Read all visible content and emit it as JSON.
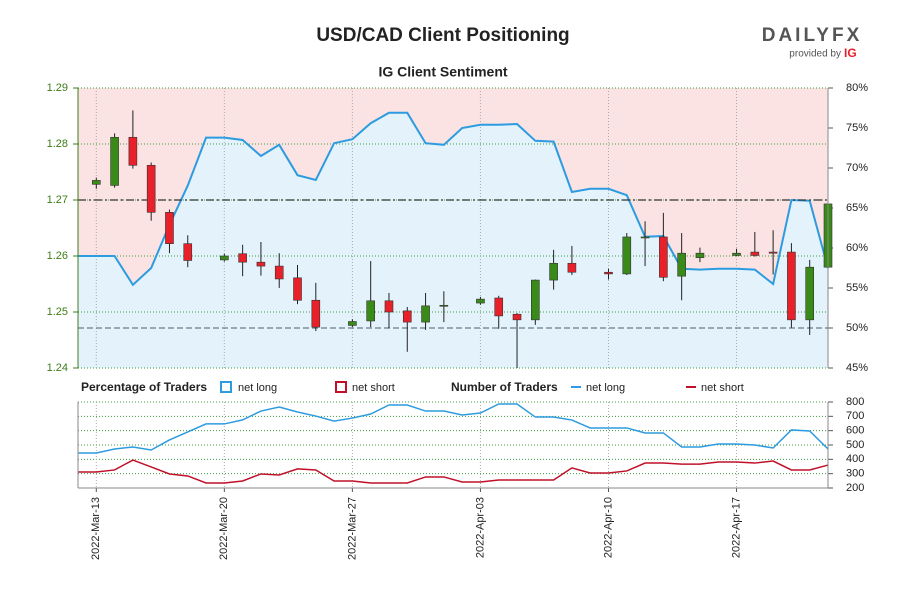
{
  "logo": {
    "brand": "DAILYFX",
    "provider": "provided by",
    "partner": "IG"
  },
  "chart_data": [
    {
      "type": "candlestick",
      "title": "USD/CAD Client Positioning",
      "subtitle": "IG Client Sentiment",
      "legend_title": "Percentage of Traders",
      "up_color": "#3a8a1a",
      "down_color": "#e8202a",
      "grid": true,
      "x": [
        "2022-03-13",
        "2022-03-14",
        "2022-03-15",
        "2022-03-16",
        "2022-03-17",
        "2022-03-18",
        "2022-03-20",
        "2022-03-21",
        "2022-03-22",
        "2022-03-23",
        "2022-03-24",
        "2022-03-25",
        "2022-03-27",
        "2022-03-28",
        "2022-03-29",
        "2022-03-30",
        "2022-03-31",
        "2022-04-01",
        "2022-04-03",
        "2022-04-04",
        "2022-04-05",
        "2022-04-06",
        "2022-04-07",
        "2022-04-08",
        "2022-04-10",
        "2022-04-11",
        "2022-04-12",
        "2022-04-13",
        "2022-04-14",
        "2022-04-15",
        "2022-04-17",
        "2022-04-18",
        "2022-04-19",
        "2022-04-20",
        "2022-04-21",
        "2022-04-22"
      ],
      "open": [
        1.2728,
        1.2726,
        1.2812,
        1.2762,
        1.2678,
        1.2622,
        1.2593,
        1.2604,
        1.2589,
        1.2582,
        1.2561,
        1.2521,
        1.2476,
        1.2484,
        1.252,
        1.2502,
        1.2482,
        1.2512,
        1.2516,
        1.2525,
        1.2496,
        1.2486,
        1.2557,
        1.2587,
        1.2571,
        1.2568,
        1.2634,
        1.2634,
        1.2564,
        1.2597,
        1.2601,
        1.2607,
        1.2607,
        1.2607,
        1.2486,
        1.258
      ],
      "high": [
        1.274,
        1.2819,
        1.286,
        1.2767,
        1.2683,
        1.2637,
        1.2604,
        1.262,
        1.2625,
        1.2605,
        1.2584,
        1.2552,
        1.2487,
        1.2591,
        1.2534,
        1.2509,
        1.2534,
        1.2537,
        1.2527,
        1.2529,
        1.2498,
        1.2558,
        1.2611,
        1.2618,
        1.2577,
        1.2641,
        1.2662,
        1.2677,
        1.2641,
        1.2615,
        1.2613,
        1.2643,
        1.2646,
        1.2623,
        1.2593,
        1.2698
      ],
      "low": [
        1.272,
        1.2722,
        1.2756,
        1.2663,
        1.2605,
        1.258,
        1.259,
        1.2564,
        1.2565,
        1.2543,
        1.2514,
        1.2466,
        1.2473,
        1.2473,
        1.2471,
        1.2429,
        1.2468,
        1.2482,
        1.2513,
        1.247,
        1.24,
        1.2477,
        1.254,
        1.2566,
        1.2558,
        1.2566,
        1.2582,
        1.2555,
        1.2521,
        1.2589,
        1.26,
        1.2599,
        1.2567,
        1.2472,
        1.2459,
        1.2566
      ],
      "close": [
        1.2735,
        1.2812,
        1.2762,
        1.2678,
        1.2622,
        1.2592,
        1.26,
        1.2589,
        1.2582,
        1.2559,
        1.2521,
        1.2473,
        1.2483,
        1.252,
        1.25,
        1.2482,
        1.2511,
        1.2512,
        1.2523,
        1.2493,
        1.2486,
        1.2557,
        1.2587,
        1.2571,
        1.2568,
        1.2634,
        1.2634,
        1.2562,
        1.2605,
        1.2605,
        1.2605,
        1.2601,
        1.2605,
        1.2486,
        1.258,
        1.2693
      ],
      "sentiment": {
        "name": "net long",
        "color": "#2d9be0",
        "area_color": "#e4f2fb",
        "axis": "y2",
        "x": [
          "2022-03-12",
          "2022-03-13",
          "2022-03-14",
          "2022-03-15",
          "2022-03-16",
          "2022-03-17",
          "2022-03-18",
          "2022-03-19",
          "2022-03-20",
          "2022-03-21",
          "2022-03-22",
          "2022-03-23",
          "2022-03-24",
          "2022-03-25",
          "2022-03-26",
          "2022-03-27",
          "2022-03-28",
          "2022-03-29",
          "2022-03-30",
          "2022-03-31",
          "2022-04-01",
          "2022-04-02",
          "2022-04-03",
          "2022-04-04",
          "2022-04-05",
          "2022-04-06",
          "2022-04-07",
          "2022-04-08",
          "2022-04-09",
          "2022-04-10",
          "2022-04-11",
          "2022-04-12",
          "2022-04-13",
          "2022-04-14",
          "2022-04-15",
          "2022-04-16",
          "2022-04-17",
          "2022-04-18",
          "2022-04-19",
          "2022-04-20",
          "2022-04-21",
          "2022-04-22"
        ],
        "values": [
          59,
          59,
          59,
          55.4,
          57.5,
          62.9,
          67.8,
          73.8,
          73.8,
          73.5,
          71.5,
          72.9,
          69.1,
          68.5,
          73.1,
          73.6,
          75.6,
          76.9,
          76.9,
          73.1,
          72.9,
          75,
          75.4,
          75.4,
          75.5,
          73.4,
          73.3,
          67,
          67.4,
          67.4,
          66.6,
          61.4,
          61.5,
          57.4,
          57.3,
          57.4,
          57.4,
          57.3,
          55.5,
          66,
          65.9,
          57.5
        ]
      },
      "short_area": {
        "name": "net short",
        "color": "#c0102a",
        "area_color": "#fbe3e3"
      },
      "hlines": [
        {
          "value": 1.27,
          "axis": "y",
          "color": "#333333"
        },
        {
          "value": 50,
          "axis": "y2",
          "color": "#6b7b8c"
        }
      ],
      "xlim": [
        "2022-03-12",
        "2022-04-22"
      ],
      "ylim": [
        1.24,
        1.29
      ],
      "yticks": [
        1.24,
        1.25,
        1.26,
        1.27,
        1.28,
        1.29
      ],
      "y2lim": [
        45,
        80
      ],
      "y2ticks": [
        {
          "value": 45,
          "label": "45%"
        },
        {
          "value": 50,
          "label": "50%"
        },
        {
          "value": 55,
          "label": "55%"
        },
        {
          "value": 60,
          "label": "60%"
        },
        {
          "value": 65,
          "label": "65%"
        },
        {
          "value": 70,
          "label": "70%"
        },
        {
          "value": 75,
          "label": "75%"
        },
        {
          "value": 80,
          "label": "80%"
        }
      ]
    },
    {
      "type": "line",
      "legend_title": "Number of Traders",
      "x": [
        "2022-03-12",
        "2022-03-13",
        "2022-03-14",
        "2022-03-15",
        "2022-03-16",
        "2022-03-17",
        "2022-03-18",
        "2022-03-19",
        "2022-03-20",
        "2022-03-21",
        "2022-03-22",
        "2022-03-23",
        "2022-03-24",
        "2022-03-25",
        "2022-03-26",
        "2022-03-27",
        "2022-03-28",
        "2022-03-29",
        "2022-03-30",
        "2022-03-31",
        "2022-04-01",
        "2022-04-02",
        "2022-04-03",
        "2022-04-04",
        "2022-04-05",
        "2022-04-06",
        "2022-04-07",
        "2022-04-08",
        "2022-04-09",
        "2022-04-10",
        "2022-04-11",
        "2022-04-12",
        "2022-04-13",
        "2022-04-14",
        "2022-04-15",
        "2022-04-16",
        "2022-04-17",
        "2022-04-18",
        "2022-04-19",
        "2022-04-20",
        "2022-04-21",
        "2022-04-22"
      ],
      "series": [
        {
          "name": "net long",
          "color": "#2d9be0",
          "values": [
            444,
            444,
            472,
            486,
            465,
            535,
            591,
            647,
            647,
            675,
            737,
            765,
            730,
            702,
            667,
            688,
            716,
            779,
            779,
            737,
            737,
            709,
            723,
            786,
            786,
            695,
            695,
            674,
            619,
            619,
            619,
            584,
            584,
            486,
            486,
            507,
            507,
            500,
            479,
            605,
            598,
            472
          ]
        },
        {
          "name": "net short",
          "color": "#c0102a",
          "values": [
            312,
            312,
            326,
            395,
            347,
            298,
            284,
            235,
            235,
            249,
            298,
            291,
            333,
            326,
            249,
            249,
            235,
            235,
            235,
            277,
            277,
            242,
            242,
            256,
            256,
            256,
            256,
            340,
            305,
            305,
            319,
            374,
            374,
            367,
            367,
            381,
            381,
            374,
            388,
            326,
            326,
            360
          ]
        }
      ],
      "xlim": [
        "2022-03-12",
        "2022-04-22"
      ],
      "xticks": [
        {
          "value": "2022-03-13",
          "label": "2022-Mar-13"
        },
        {
          "value": "2022-03-20",
          "label": "2022-Mar-20"
        },
        {
          "value": "2022-03-27",
          "label": "2022-Mar-27"
        },
        {
          "value": "2022-04-03",
          "label": "2022-Apr-03"
        },
        {
          "value": "2022-04-10",
          "label": "2022-Apr-10"
        },
        {
          "value": "2022-04-17",
          "label": "2022-Apr-17"
        }
      ],
      "ylim": [
        200,
        800
      ],
      "yticks": [
        200,
        300,
        400,
        500,
        600,
        700,
        800
      ],
      "grid": true
    }
  ]
}
